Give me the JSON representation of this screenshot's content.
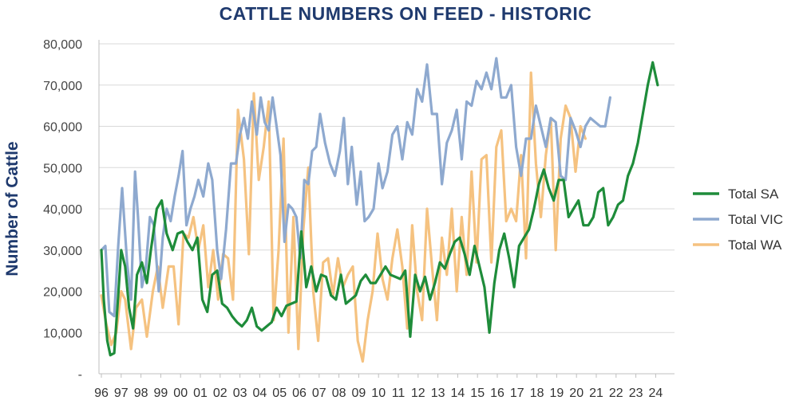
{
  "chart_data": {
    "type": "line",
    "title": "CATTLE NUMBERS ON FEED - HISTORIC",
    "xlabel": "",
    "ylabel": "Number of Cattle",
    "ylim": [
      0,
      80000
    ],
    "yticks": [
      "-",
      "10,000",
      "20,000",
      "30,000",
      "40,000",
      "50,000",
      "60,000",
      "70,000",
      "80,000"
    ],
    "categories": [
      "96",
      "97",
      "98",
      "99",
      "00",
      "01",
      "02",
      "03",
      "04",
      "05",
      "06",
      "07",
      "08",
      "09",
      "10",
      "11",
      "12",
      "13",
      "14",
      "15",
      "16",
      "17",
      "18",
      "19",
      "20",
      "21",
      "22",
      "23",
      "24"
    ],
    "legend_position": "right",
    "grid": true,
    "series": [
      {
        "name": "Total SA",
        "color": "#1e8c3a",
        "values": [
          30000,
          18000,
          8000,
          4500,
          5000,
          19000,
          30000,
          26000,
          16000,
          11000,
          24000,
          27000,
          22000,
          30000,
          40000,
          42000,
          34000,
          30000,
          34000,
          34500,
          32000,
          30000,
          33000,
          18000,
          15000,
          24000,
          25000,
          17000,
          16000,
          14000,
          12500,
          11500,
          13000,
          16000,
          11500,
          10500,
          11500,
          12500,
          16000,
          14000,
          16500,
          17000,
          17500,
          34500,
          21000,
          26000,
          20000,
          24000,
          23500,
          19000,
          18000,
          24000,
          17000,
          18000,
          19000,
          22500,
          24000,
          22000,
          22000,
          24000,
          26000,
          24000,
          23500,
          23000,
          25000,
          9000,
          24000,
          20000,
          23500,
          18000,
          22000,
          27000,
          25500,
          29000,
          32000,
          33000,
          29000,
          24000,
          31000,
          26000,
          21000,
          10000,
          22000,
          30000,
          34000,
          28000,
          21000,
          31000,
          33000,
          35000,
          40000,
          46000,
          49500,
          45000,
          42000,
          47000,
          47000,
          38000,
          40000,
          42000,
          36000,
          36000,
          38000,
          44000,
          45000,
          36000,
          38000,
          41000,
          42000,
          48000,
          51000,
          56000,
          63000,
          70000,
          75500,
          70000
        ],
        "x": [
          0,
          0.12,
          0.3,
          0.45,
          0.65,
          0.85,
          1.0,
          1.2,
          1.4,
          1.6,
          1.8,
          2.05,
          2.3,
          2.5,
          2.8,
          3.05,
          3.3,
          3.6,
          3.85,
          4.1,
          4.35,
          4.6,
          4.85,
          5.1,
          5.35,
          5.6,
          5.85,
          6.1,
          6.35,
          6.6,
          6.85,
          7.1,
          7.35,
          7.6,
          7.85,
          8.1,
          8.35,
          8.6,
          8.85,
          9.1,
          9.35,
          9.6,
          9.85,
          10.1,
          10.35,
          10.6,
          10.85,
          11.1,
          11.35,
          11.6,
          11.85,
          12.1,
          12.35,
          12.6,
          12.85,
          13.1,
          13.35,
          13.6,
          13.85,
          14.1,
          14.35,
          14.6,
          14.85,
          15.1,
          15.35,
          15.6,
          15.85,
          16.1,
          16.35,
          16.6,
          16.85,
          17.1,
          17.35,
          17.6,
          17.85,
          18.1,
          18.35,
          18.6,
          18.85,
          19.1,
          19.35,
          19.6,
          19.85,
          20.1,
          20.35,
          20.6,
          20.85,
          21.1,
          21.35,
          21.6,
          21.85,
          22.1,
          22.35,
          22.6,
          22.85,
          23.1,
          23.35,
          23.6,
          23.85,
          24.1,
          24.35,
          24.6,
          24.85,
          25.1,
          25.35,
          25.6,
          25.85,
          26.1,
          26.35,
          26.6,
          26.85,
          27.1,
          27.35,
          27.6,
          27.85,
          28.1
        ]
      },
      {
        "name": "Total VIC",
        "color": "#8ea9cf",
        "values": [
          30000,
          31000,
          15000,
          14000,
          31000,
          45000,
          27000,
          18000,
          49000,
          38000,
          21000,
          26000,
          38000,
          36000,
          20000,
          33000,
          40000,
          37000,
          43000,
          48000,
          54000,
          36000,
          40000,
          43000,
          47000,
          43000,
          51000,
          47000,
          30000,
          23000,
          35000,
          51000,
          51000,
          58000,
          62000,
          57000,
          66000,
          58000,
          67000,
          61000,
          59000,
          67000,
          60000,
          53000,
          32000,
          41000,
          40000,
          38000,
          28000,
          47000,
          46000,
          54000,
          55000,
          63000,
          56000,
          51000,
          48000,
          54000,
          62000,
          46000,
          55000,
          41000,
          49000,
          37000,
          38000,
          40000,
          51000,
          45000,
          49000,
          58000,
          60000,
          52000,
          61000,
          58000,
          69000,
          66000,
          75000,
          63000,
          63000,
          46000,
          56000,
          59000,
          64000,
          52000,
          66000,
          65000,
          71000,
          69000,
          73000,
          69000,
          76500,
          67000,
          67000,
          70000,
          55000,
          48000,
          57000,
          57000,
          65000,
          60000,
          55000,
          62000,
          61000,
          48000,
          47000,
          62000,
          59000,
          55000,
          60000,
          62000,
          61000,
          60000,
          60000,
          67000
        ],
        "x": [
          0,
          0.2,
          0.4,
          0.65,
          0.85,
          1.05,
          1.3,
          1.5,
          1.7,
          1.85,
          2.05,
          2.25,
          2.45,
          2.65,
          2.9,
          3.1,
          3.3,
          3.5,
          3.7,
          3.9,
          4.1,
          4.3,
          4.5,
          4.7,
          4.9,
          5.15,
          5.4,
          5.6,
          5.85,
          6.05,
          6.3,
          6.55,
          6.8,
          7.0,
          7.2,
          7.4,
          7.6,
          7.85,
          8.05,
          8.25,
          8.45,
          8.65,
          8.85,
          9.05,
          9.25,
          9.45,
          9.65,
          9.85,
          10.05,
          10.25,
          10.45,
          10.65,
          10.85,
          11.05,
          11.3,
          11.55,
          11.8,
          12.05,
          12.25,
          12.45,
          12.65,
          12.9,
          13.1,
          13.3,
          13.5,
          13.75,
          14.0,
          14.2,
          14.45,
          14.7,
          14.95,
          15.2,
          15.45,
          15.7,
          15.95,
          16.2,
          16.45,
          16.7,
          16.95,
          17.2,
          17.45,
          17.7,
          17.95,
          18.2,
          18.45,
          18.7,
          18.95,
          19.2,
          19.45,
          19.7,
          19.95,
          20.2,
          20.45,
          20.7,
          20.95,
          21.2,
          21.45,
          21.7,
          21.95,
          22.2,
          22.45,
          22.7,
          22.95,
          23.2,
          23.45,
          23.7,
          23.95,
          24.2,
          24.45,
          24.7,
          24.95,
          25.2,
          25.45,
          25.7
        ]
      },
      {
        "name": "Total WA",
        "color": "#f5c280",
        "values": [
          19000,
          12000,
          7000,
          10000,
          20000,
          18000,
          6000,
          16000,
          18000,
          9000,
          20000,
          26000,
          16000,
          26000,
          26000,
          12000,
          34000,
          33000,
          38000,
          30000,
          36000,
          21000,
          30000,
          18000,
          29000,
          28000,
          18000,
          64000,
          52000,
          29000,
          68000,
          47000,
          55000,
          66000,
          13000,
          30000,
          57000,
          10000,
          38000,
          6000,
          35000,
          50000,
          20000,
          8000,
          27000,
          28000,
          19000,
          28000,
          21000,
          24000,
          26000,
          8000,
          3000,
          13000,
          20000,
          34000,
          23000,
          18000,
          28000,
          35000,
          26000,
          11000,
          36000,
          20000,
          13000,
          40000,
          26000,
          13000,
          33000,
          24000,
          40000,
          20000,
          38000,
          24000,
          49000,
          27000,
          52000,
          53000,
          27000,
          55000,
          59000,
          37000,
          40000,
          37000,
          53000,
          28000,
          73000,
          51000,
          38000,
          53000,
          62000,
          30000,
          57000,
          65000,
          62000,
          49000,
          60000,
          57000
        ],
        "x": [
          0,
          0.25,
          0.5,
          0.75,
          1.0,
          1.2,
          1.5,
          1.75,
          2.05,
          2.3,
          2.6,
          2.85,
          3.1,
          3.4,
          3.65,
          3.9,
          4.15,
          4.4,
          4.65,
          4.9,
          5.15,
          5.4,
          5.65,
          5.9,
          6.15,
          6.4,
          6.65,
          6.9,
          7.2,
          7.45,
          7.7,
          7.95,
          8.2,
          8.45,
          8.7,
          8.95,
          9.2,
          9.45,
          9.7,
          9.95,
          10.2,
          10.45,
          10.7,
          10.95,
          11.2,
          11.45,
          11.7,
          11.95,
          12.2,
          12.45,
          12.7,
          12.95,
          13.2,
          13.45,
          13.7,
          13.95,
          14.2,
          14.45,
          14.7,
          14.95,
          15.2,
          15.45,
          15.7,
          15.95,
          16.2,
          16.45,
          16.7,
          16.95,
          17.2,
          17.45,
          17.7,
          17.95,
          18.2,
          18.45,
          18.7,
          18.95,
          19.2,
          19.45,
          19.7,
          19.95,
          20.2,
          20.45,
          20.7,
          20.95,
          21.2,
          21.45,
          21.7,
          21.95,
          22.2,
          22.45,
          22.7,
          22.95,
          23.2,
          23.45,
          23.7,
          23.95,
          24.2,
          24.45
        ]
      }
    ]
  }
}
